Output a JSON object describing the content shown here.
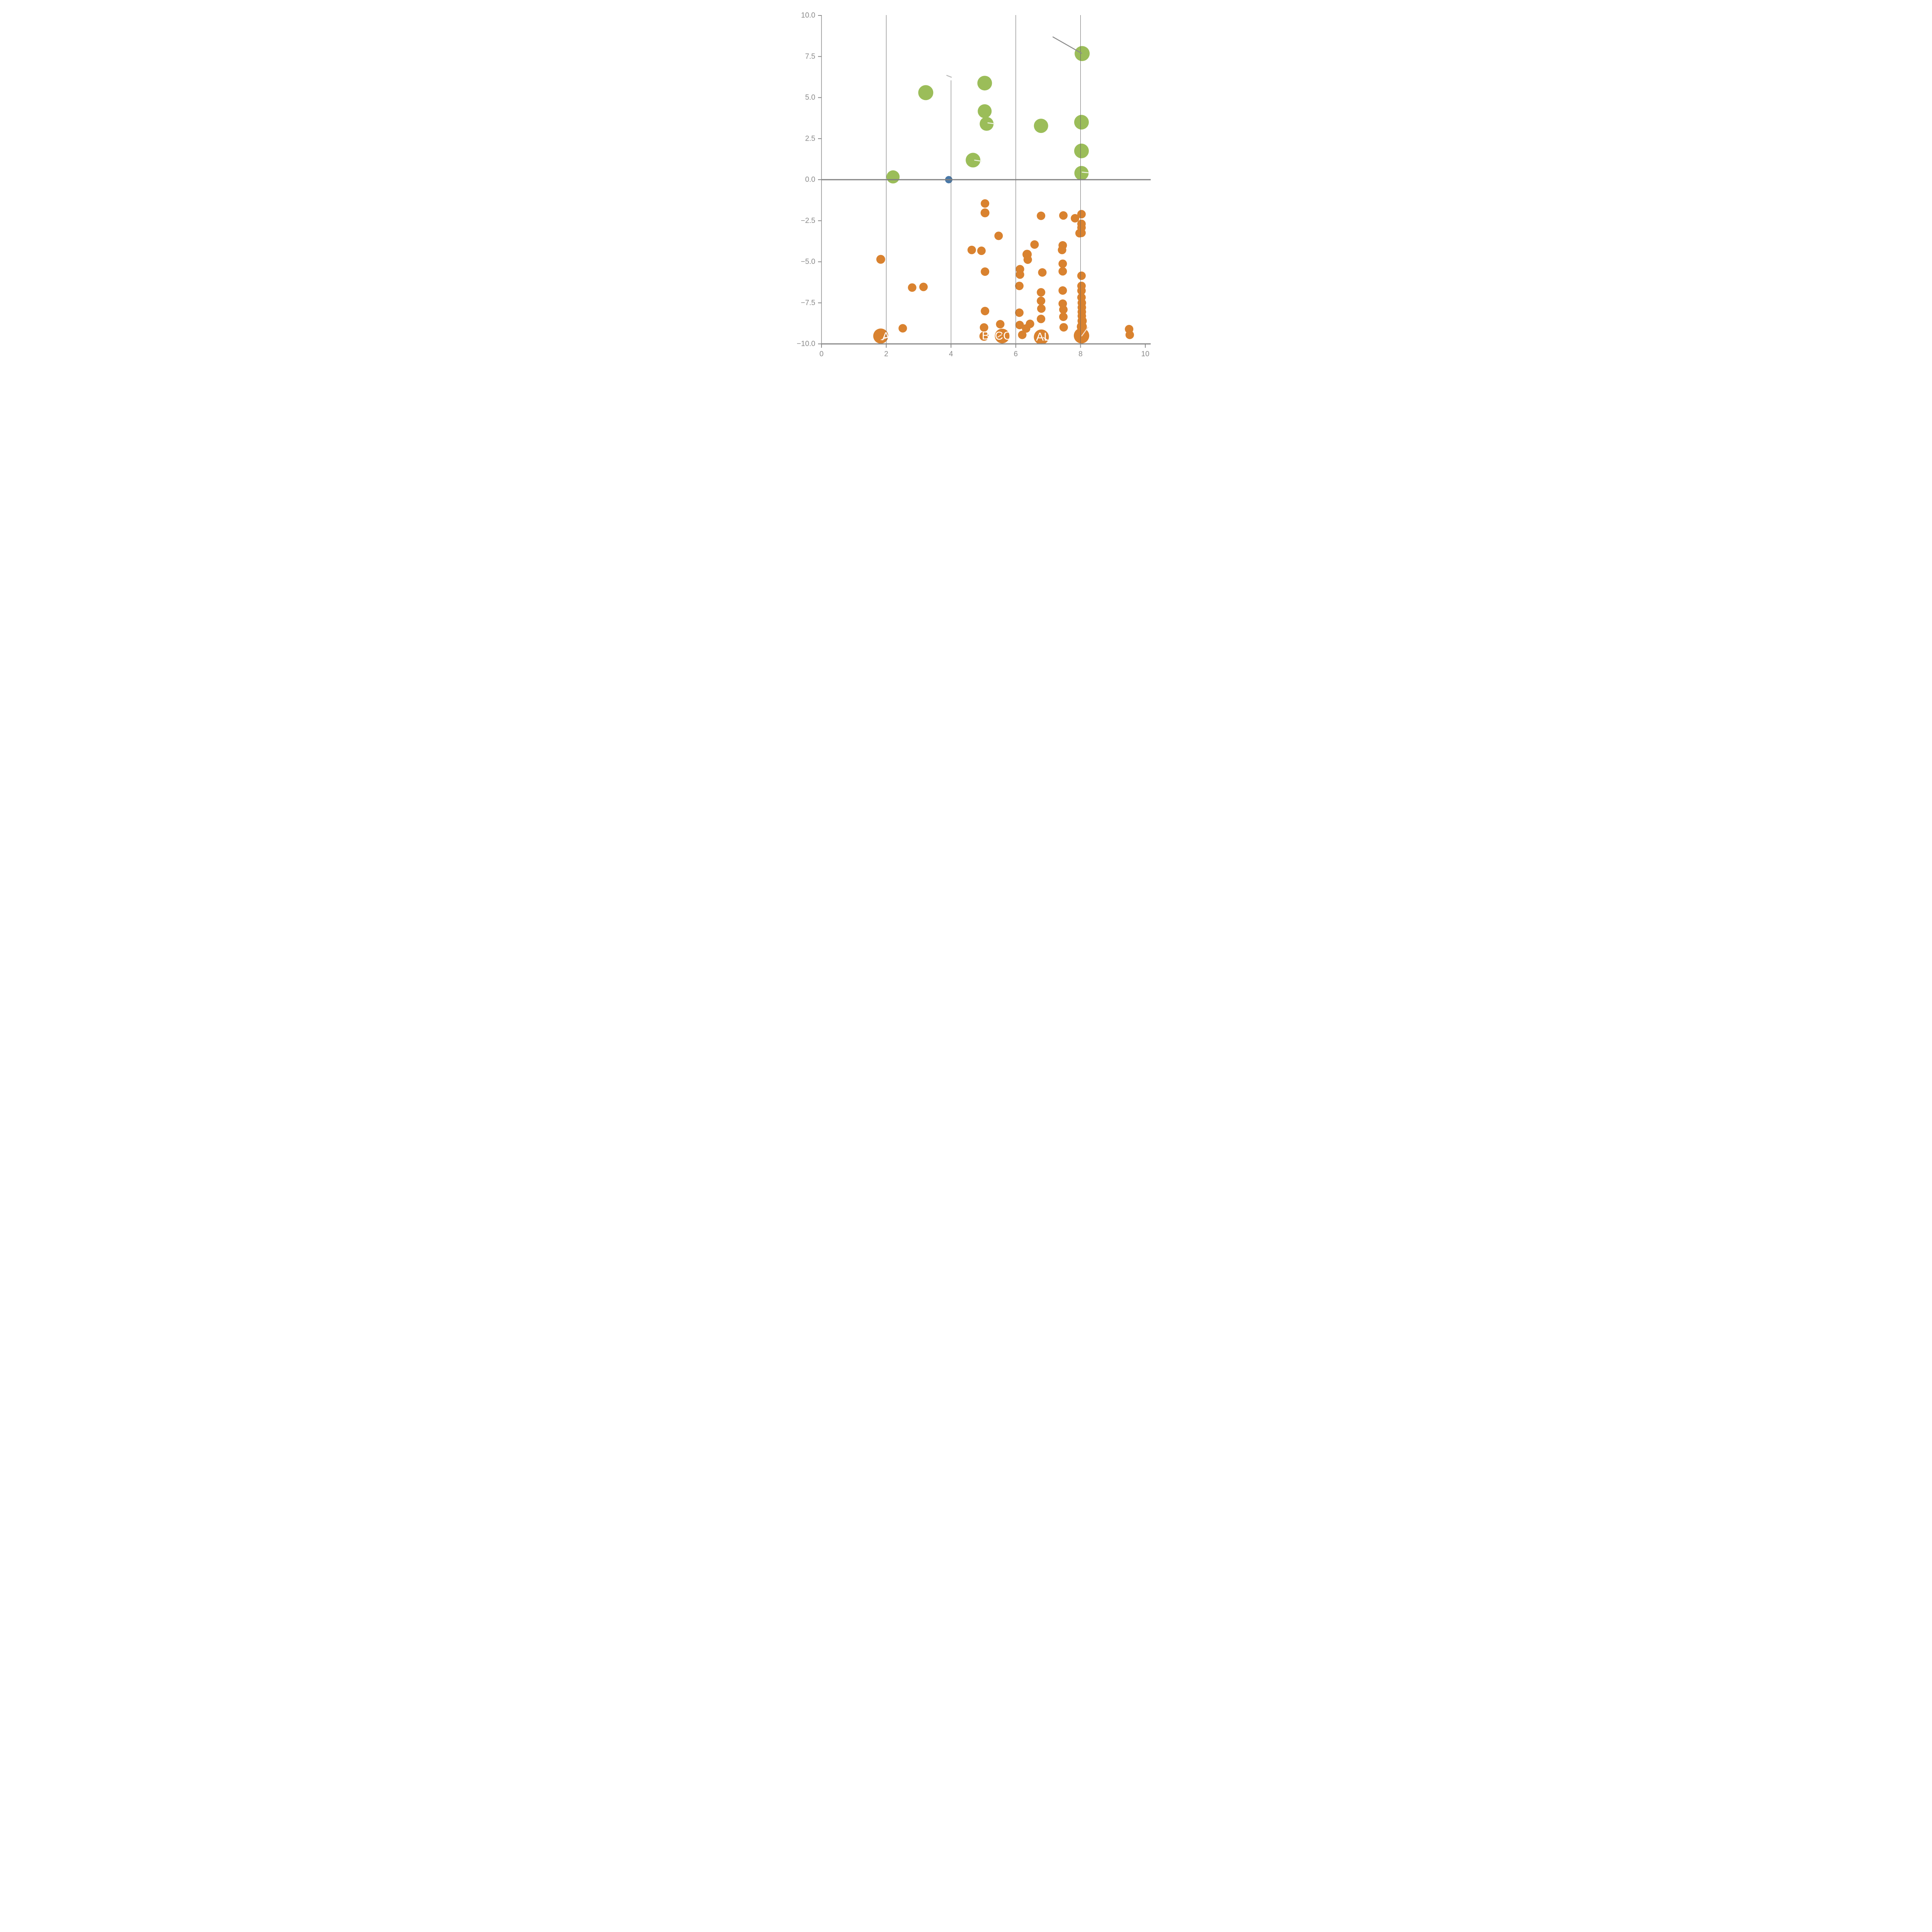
{
  "chart_data": {
    "type": "scatter",
    "title": "",
    "xlabel": "",
    "ylabel": "",
    "xlim": [
      0,
      10
    ],
    "ylim": [
      -10,
      10
    ],
    "x_tick_labels": [
      "0",
      "2",
      "4",
      "6",
      "8",
      "10"
    ],
    "x_tick_values": [
      0,
      2,
      4,
      6,
      8,
      10
    ],
    "y_tick_labels": [
      "10.0",
      "7.5",
      "5.0",
      "2.5",
      "0.0",
      "−2.5",
      "−5.0",
      "−7.5",
      "−10.0"
    ],
    "y_tick_values": [
      10,
      7.5,
      5,
      2.5,
      0,
      -2.5,
      -5,
      -7.5,
      -10
    ],
    "grid_x_values": [
      2,
      4,
      6,
      8
    ],
    "grid_x4_top_data_y": 6.05,
    "legend": "none",
    "colors": {
      "green": "#9BBD59",
      "blue": "#4878A8",
      "orange": "#D9822F",
      "axis": "#888888",
      "zero_line": "#808080",
      "gridline": "#666666",
      "tick_label": "#8A8A8A",
      "annotation": "#8C8C8C",
      "dash_on_orange": "#F7E2D2",
      "dash_on_green": "#EDF3E0",
      "dash_gray": "#BBBBBB",
      "point_label": "#FFFFFF"
    },
    "series": [
      {
        "name": "green-bubbles",
        "color_key": "green",
        "points": [
          {
            "x": 2.21,
            "y": 0.17,
            "r": 17
          },
          {
            "x": 3.22,
            "y": 5.3,
            "r": 19.5
          },
          {
            "x": 5.04,
            "y": 5.88,
            "r": 19
          },
          {
            "x": 5.04,
            "y": 4.17,
            "r": 18
          },
          {
            "x": 5.1,
            "y": 3.4,
            "r": 18
          },
          {
            "x": 4.68,
            "y": 1.19,
            "r": 19
          },
          {
            "x": 6.78,
            "y": 3.28,
            "r": 18.5
          },
          {
            "x": 8.05,
            "y": 7.68,
            "r": 19.5
          },
          {
            "x": 8.03,
            "y": 3.5,
            "r": 19
          },
          {
            "x": 8.03,
            "y": 1.75,
            "r": 19
          },
          {
            "x": 8.03,
            "y": 0.4,
            "r": 18.5
          }
        ]
      },
      {
        "name": "blue-bubbles",
        "color_key": "blue",
        "points": [
          {
            "x": 3.93,
            "y": 0.0,
            "r": 9.5
          }
        ]
      },
      {
        "name": "orange-bubbles",
        "color_key": "orange",
        "points": [
          {
            "x": 1.83,
            "y": -4.85,
            "r": 11.5
          },
          {
            "x": 2.8,
            "y": -6.57,
            "r": 11
          },
          {
            "x": 3.15,
            "y": -6.53,
            "r": 11
          },
          {
            "x": 2.51,
            "y": -9.05,
            "r": 11
          },
          {
            "x": 1.83,
            "y": -9.52,
            "r": 19.5
          },
          {
            "x": 5.05,
            "y": -1.45,
            "r": 11
          },
          {
            "x": 5.05,
            "y": -2.02,
            "r": 11.5
          },
          {
            "x": 4.64,
            "y": -4.28,
            "r": 11
          },
          {
            "x": 4.94,
            "y": -4.33,
            "r": 11
          },
          {
            "x": 5.05,
            "y": -5.6,
            "r": 11
          },
          {
            "x": 5.05,
            "y": -8.0,
            "r": 11
          },
          {
            "x": 5.02,
            "y": -9.0,
            "r": 11
          },
          {
            "x": 5.02,
            "y": -9.53,
            "r": 12
          },
          {
            "x": 5.47,
            "y": -3.42,
            "r": 11
          },
          {
            "x": 5.52,
            "y": -8.8,
            "r": 11
          },
          {
            "x": 5.58,
            "y": -9.52,
            "r": 19
          },
          {
            "x": 6.13,
            "y": -5.45,
            "r": 11
          },
          {
            "x": 6.13,
            "y": -5.78,
            "r": 11
          },
          {
            "x": 6.11,
            "y": -6.47,
            "r": 11
          },
          {
            "x": 6.11,
            "y": -8.1,
            "r": 11
          },
          {
            "x": 6.12,
            "y": -8.85,
            "r": 11
          },
          {
            "x": 6.2,
            "y": -9.45,
            "r": 11
          },
          {
            "x": 6.32,
            "y": -9.06,
            "r": 11
          },
          {
            "x": 6.44,
            "y": -8.78,
            "r": 11
          },
          {
            "x": 6.35,
            "y": -4.55,
            "r": 12
          },
          {
            "x": 6.37,
            "y": -4.87,
            "r": 11
          },
          {
            "x": 6.58,
            "y": -3.95,
            "r": 11
          },
          {
            "x": 6.78,
            "y": -2.2,
            "r": 11
          },
          {
            "x": 6.82,
            "y": -5.65,
            "r": 11
          },
          {
            "x": 6.78,
            "y": -6.86,
            "r": 11
          },
          {
            "x": 6.78,
            "y": -7.38,
            "r": 11
          },
          {
            "x": 6.79,
            "y": -7.85,
            "r": 11
          },
          {
            "x": 6.78,
            "y": -8.48,
            "r": 11
          },
          {
            "x": 6.79,
            "y": -9.58,
            "r": 19.5
          },
          {
            "x": 7.47,
            "y": -2.18,
            "r": 11
          },
          {
            "x": 7.45,
            "y": -4.0,
            "r": 11
          },
          {
            "x": 7.43,
            "y": -4.28,
            "r": 11
          },
          {
            "x": 7.45,
            "y": -5.12,
            "r": 11
          },
          {
            "x": 7.45,
            "y": -5.58,
            "r": 11
          },
          {
            "x": 7.45,
            "y": -6.75,
            "r": 11
          },
          {
            "x": 7.45,
            "y": -7.55,
            "r": 11
          },
          {
            "x": 7.47,
            "y": -7.91,
            "r": 11
          },
          {
            "x": 7.47,
            "y": -8.35,
            "r": 11
          },
          {
            "x": 7.48,
            "y": -8.99,
            "r": 11
          },
          {
            "x": 7.83,
            "y": -2.35,
            "r": 11
          },
          {
            "x": 8.03,
            "y": -2.1,
            "r": 11
          },
          {
            "x": 8.03,
            "y": -2.69,
            "r": 11
          },
          {
            "x": 8.03,
            "y": -2.92,
            "r": 11
          },
          {
            "x": 7.97,
            "y": -3.26,
            "r": 11
          },
          {
            "x": 8.03,
            "y": -3.24,
            "r": 11
          },
          {
            "x": 8.03,
            "y": -5.85,
            "r": 11
          },
          {
            "x": 8.03,
            "y": -6.47,
            "r": 11
          },
          {
            "x": 8.03,
            "y": -6.76,
            "r": 11
          },
          {
            "x": 8.03,
            "y": -7.17,
            "r": 11
          },
          {
            "x": 8.04,
            "y": -7.5,
            "r": 11
          },
          {
            "x": 8.04,
            "y": -7.78,
            "r": 11
          },
          {
            "x": 8.04,
            "y": -8.05,
            "r": 11
          },
          {
            "x": 8.04,
            "y": -8.3,
            "r": 11
          },
          {
            "x": 8.05,
            "y": -8.6,
            "r": 12
          },
          {
            "x": 8.04,
            "y": -8.95,
            "r": 13
          },
          {
            "x": 8.03,
            "y": -9.5,
            "r": 20
          },
          {
            "x": 9.5,
            "y": -9.1,
            "r": 11
          },
          {
            "x": 9.52,
            "y": -9.45,
            "r": 11
          }
        ]
      }
    ],
    "point_labels": [
      {
        "text": "A",
        "x": 1.99,
        "y": -9.55
      },
      {
        "text": "B",
        "x": 5.07,
        "y": -9.5
      },
      {
        "text": "CO",
        "x": 5.62,
        "y": -9.52
      },
      {
        "text": "AL",
        "x": 6.845,
        "y": -9.58
      }
    ],
    "leader_lines": [
      {
        "x1": 1.845,
        "y1": -9.75,
        "x2": 2.03,
        "y2": -9.61,
        "color_key": "dash_on_orange"
      },
      {
        "x1": 5.45,
        "y1": -9.58,
        "x2": 5.56,
        "y2": -9.44,
        "color_key": "dash_on_orange"
      },
      {
        "x1": 6.85,
        "y1": -9.61,
        "x2": 7.0,
        "y2": -9.8,
        "color_key": "dash_on_orange"
      },
      {
        "x1": 8.04,
        "y1": -9.51,
        "x2": 8.23,
        "y2": -8.99,
        "color_key": "dash_on_orange"
      },
      {
        "x1": 5.14,
        "y1": 3.46,
        "x2": 5.33,
        "y2": 3.41,
        "color_key": "dash_on_green"
      },
      {
        "x1": 4.73,
        "y1": 1.19,
        "x2": 4.93,
        "y2": 1.13,
        "color_key": "dash_on_green"
      },
      {
        "x1": 8.05,
        "y1": 0.46,
        "x2": 8.25,
        "y2": 0.42,
        "color_key": "dash_on_green"
      },
      {
        "x1": 3.87,
        "y1": 6.35,
        "x2": 4.01,
        "y2": 6.24,
        "color_key": "dash_gray"
      }
    ],
    "annotation_line": {
      "x1": 7.15,
      "y1": 8.69,
      "x2": 8.03,
      "y2": 7.7
    }
  }
}
